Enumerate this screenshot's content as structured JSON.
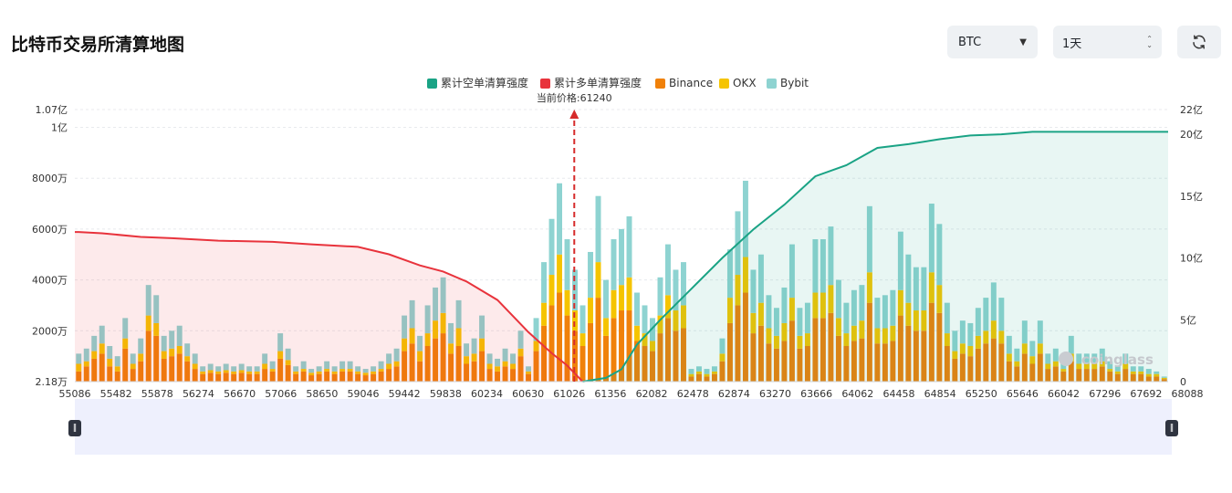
{
  "header": {
    "title": "比特币交易所清算地图"
  },
  "controls": {
    "coin_value": "BTC",
    "range_value": "1天",
    "coin_caret_icon": "caret-down-icon",
    "range_icon": "up-down-icon",
    "refresh_icon": "refresh-icon"
  },
  "watermark": "coinglass",
  "colors": {
    "short_cum": "#1aa385",
    "long_cum": "#e8333c",
    "binance": "#f0810a",
    "okx": "#f5c400",
    "bybit": "#8ed3d1",
    "price_marker": "#d62b2b"
  },
  "chart_data": {
    "type": "bar",
    "legend": [
      "累计空单清算强度",
      "累计多单清算强度",
      "Binance",
      "OKX",
      "Bybit"
    ],
    "legend_position": "top-center",
    "current_price_label": "当前价格:61240",
    "current_price": 61240,
    "x_tick_labels": [
      "55086",
      "55482",
      "55878",
      "56274",
      "56670",
      "57066",
      "58650",
      "59046",
      "59442",
      "59838",
      "60234",
      "60630",
      "61026",
      "61356",
      "62082",
      "62478",
      "62874",
      "63270",
      "63666",
      "64062",
      "64458",
      "64854",
      "65250",
      "65646",
      "66042",
      "67296",
      "67692",
      "68088"
    ],
    "y_left_tick_labels": [
      "2.18万",
      "2000万",
      "4000万",
      "6000万",
      "8000万",
      "1亿",
      "1.07亿"
    ],
    "y_left_tick_values": [
      21800,
      20000000,
      40000000,
      60000000,
      80000000,
      100000000,
      107000000
    ],
    "y_right_tick_labels": [
      "0",
      "5亿",
      "10亿",
      "15亿",
      "20亿",
      "22亿"
    ],
    "y_right_tick_values": [
      0,
      500000000,
      1000000000,
      1500000000,
      2000000000,
      2200000000
    ],
    "ylim_left": [
      21800,
      107000000
    ],
    "ylim_right": [
      0,
      2200000000
    ],
    "grid": "horizontal dashed",
    "cumulative_long_curve": {
      "name": "累计多单清算强度",
      "axis": "right",
      "points": [
        [
          0,
          12.1
        ],
        [
          3,
          12.0
        ],
        [
          8,
          11.7
        ],
        [
          12,
          11.6
        ],
        [
          18,
          11.4
        ],
        [
          25,
          11.3
        ],
        [
          30,
          11.1
        ],
        [
          36,
          10.9
        ],
        [
          40,
          10.3
        ],
        [
          44,
          9.4
        ],
        [
          47,
          8.9
        ],
        [
          50,
          8.1
        ],
        [
          54,
          6.6
        ],
        [
          58,
          4.0
        ],
        [
          61,
          2.3
        ],
        [
          63,
          1.3
        ],
        [
          65,
          0.0
        ]
      ]
    },
    "cumulative_short_curve": {
      "name": "累计空单清算强度",
      "axis": "right",
      "points": [
        [
          65,
          0.0
        ],
        [
          68,
          0.3
        ],
        [
          70,
          1.0
        ],
        [
          72,
          3.0
        ],
        [
          75,
          5.0
        ],
        [
          79,
          7.5
        ],
        [
          83,
          10.0
        ],
        [
          87,
          12.3
        ],
        [
          91,
          14.3
        ],
        [
          95,
          16.6
        ],
        [
          99,
          17.5
        ],
        [
          103,
          18.9
        ],
        [
          107,
          19.2
        ],
        [
          111,
          19.6
        ],
        [
          115,
          19.9
        ],
        [
          119,
          20.0
        ],
        [
          123,
          20.2
        ],
        [
          128,
          20.2
        ]
      ]
    },
    "n_bins": 141,
    "price_bin_index": 65,
    "series": [
      {
        "name": "Binance",
        "values": [
          400,
          600,
          900,
          1100,
          600,
          400,
          1300,
          500,
          800,
          2000,
          1800,
          900,
          1000,
          1100,
          800,
          500,
          300,
          350,
          300,
          350,
          300,
          350,
          300,
          300,
          500,
          400,
          900,
          650,
          300,
          400,
          250,
          300,
          400,
          300,
          400,
          400,
          300,
          250,
          300,
          400,
          500,
          600,
          1200,
          1500,
          800,
          1400,
          1700,
          1900,
          1100,
          1400,
          700,
          800,
          1200,
          500,
          400,
          600,
          500,
          1000,
          300,
          1200,
          2200,
          3000,
          3500,
          2600,
          2000,
          1400,
          2300,
          3300,
          1800,
          2500,
          2800,
          2800,
          1600,
          1400,
          1200,
          1900,
          2500,
          2000,
          2100,
          200,
          300,
          200,
          300,
          800,
          2300,
          3000,
          3500,
          1900,
          2200,
          1500,
          1300,
          1600,
          2400,
          1300,
          1400,
          2500,
          2500,
          2700,
          1800,
          1400,
          1600,
          1700,
          3100,
          1500,
          1500,
          1600,
          2600,
          2200,
          2000,
          2000,
          3100,
          2700,
          1400,
          900,
          1100,
          1000,
          1300,
          1500,
          1700,
          1500,
          800,
          600,
          1100,
          700,
          1100,
          500,
          600,
          400,
          800,
          500,
          500,
          500,
          600,
          400,
          300,
          500,
          300,
          300,
          200,
          200,
          100
        ]
      },
      {
        "name": "OKX",
        "values": [
          300,
          200,
          300,
          400,
          300,
          200,
          400,
          200,
          300,
          600,
          500,
          300,
          300,
          300,
          200,
          200,
          100,
          100,
          100,
          100,
          100,
          100,
          100,
          100,
          200,
          100,
          300,
          200,
          100,
          100,
          100,
          100,
          100,
          100,
          100,
          100,
          100,
          100,
          100,
          100,
          200,
          200,
          500,
          600,
          400,
          500,
          700,
          800,
          400,
          700,
          300,
          300,
          500,
          200,
          200,
          200,
          200,
          300,
          100,
          400,
          900,
          1200,
          1500,
          1000,
          800,
          500,
          1000,
          1400,
          700,
          1100,
          1000,
          1300,
          600,
          500,
          400,
          700,
          900,
          800,
          900,
          100,
          100,
          100,
          100,
          300,
          1000,
          1200,
          1400,
          800,
          900,
          600,
          500,
          700,
          900,
          500,
          500,
          1000,
          1000,
          1100,
          700,
          500,
          600,
          700,
          1200,
          600,
          600,
          600,
          1000,
          900,
          800,
          800,
          1200,
          1100,
          500,
          300,
          400,
          400,
          500,
          500,
          700,
          500,
          300,
          200,
          400,
          300,
          400,
          200,
          200,
          100,
          300,
          200,
          200,
          200,
          200,
          100,
          100,
          200,
          100,
          100,
          100,
          100,
          50
        ]
      },
      {
        "name": "Bybit",
        "values": [
          400,
          500,
          600,
          700,
          500,
          400,
          800,
          400,
          600,
          1200,
          1100,
          600,
          700,
          800,
          500,
          400,
          200,
          250,
          200,
          250,
          200,
          250,
          200,
          200,
          400,
          300,
          700,
          450,
          200,
          300,
          150,
          200,
          300,
          200,
          300,
          300,
          200,
          150,
          200,
          300,
          400,
          500,
          900,
          1100,
          600,
          1100,
          1300,
          1400,
          800,
          1100,
          500,
          600,
          900,
          400,
          300,
          500,
          400,
          700,
          200,
          900,
          1600,
          2200,
          2800,
          2000,
          1600,
          1100,
          1800,
          2600,
          1500,
          2000,
          2200,
          2400,
          1300,
          1100,
          900,
          1500,
          2000,
          1600,
          1700,
          200,
          200,
          200,
          200,
          600,
          1900,
          2500,
          3000,
          1700,
          1900,
          1300,
          1100,
          1400,
          2100,
          1100,
          1200,
          2100,
          2100,
          2300,
          1500,
          1200,
          1400,
          1400,
          2600,
          1200,
          1300,
          1400,
          2300,
          1900,
          1700,
          1700,
          2700,
          2400,
          1200,
          800,
          900,
          900,
          1100,
          1300,
          1500,
          1300,
          700,
          500,
          900,
          600,
          900,
          400,
          500,
          300,
          700,
          400,
          400,
          400,
          500,
          300,
          200,
          400,
          200,
          200,
          200,
          100,
          50
        ]
      }
    ],
    "units": "万"
  }
}
